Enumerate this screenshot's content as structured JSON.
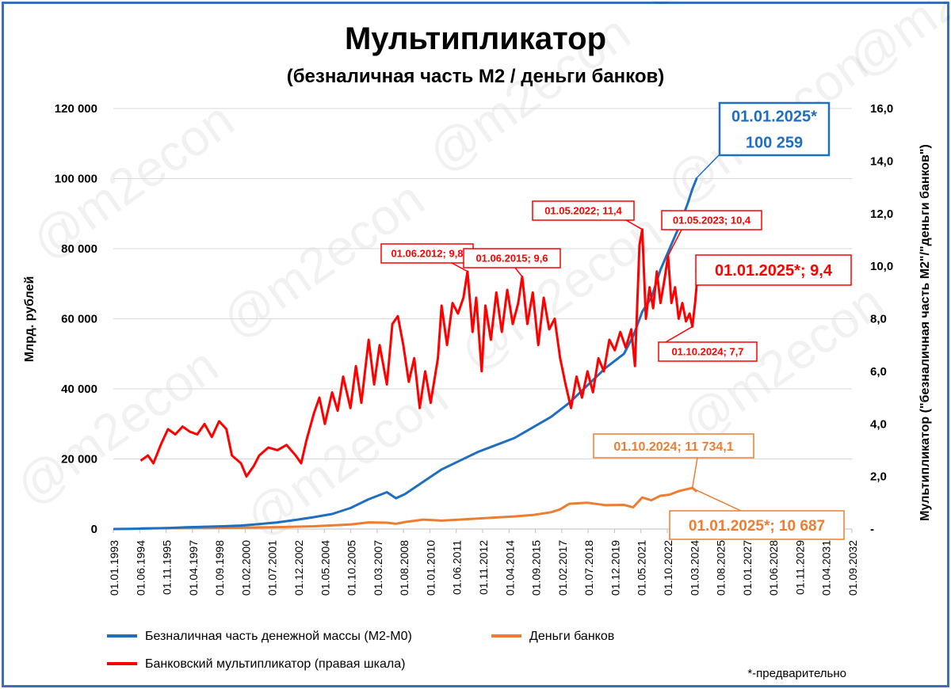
{
  "chart_data": {
    "type": "line",
    "title": "Мультипликатор",
    "subtitle": "(безналичная часть М2 / деньги банков)",
    "ylabel_left": "Млрд. рублей",
    "ylabel_right": "Мультипликатор (\"безналичная часть М2\"/\"деньги банков\")",
    "ylim_left": [
      0,
      120000
    ],
    "ylim_right": [
      0,
      16
    ],
    "yticks_left": [
      "0",
      "20 000",
      "40 000",
      "60 000",
      "80 000",
      "100 000",
      "120 000"
    ],
    "yticks_right": [
      "-",
      "2,0",
      "4,0",
      "6,0",
      "8,0",
      "10,0",
      "12,0",
      "14,0",
      "16,0"
    ],
    "x_ticks": [
      "01.01.1993",
      "01.06.1994",
      "01.11.1995",
      "01.04.1997",
      "01.09.1998",
      "01.02.2000",
      "01.07.2001",
      "01.12.2002",
      "01.05.2004",
      "01.10.2005",
      "01.03.2007",
      "01.08.2008",
      "01.01.2010",
      "01.06.2011",
      "01.11.2012",
      "01.04.2014",
      "01.09.2015",
      "01.02.2017",
      "01.07.2018",
      "01.12.2019",
      "01.05.2021",
      "01.10.2022",
      "01.03.2024",
      "01.08.2025",
      "01.01.2027",
      "01.06.2028",
      "01.11.2029",
      "01.04.2031",
      "01.09.2032"
    ],
    "x_range": [
      1993.0,
      2033.5
    ],
    "series": [
      {
        "name": "Безналичная часть денежной массы (М2-М0)",
        "color": "#1f6fc1",
        "axis": "left",
        "points": [
          [
            1993.0,
            0
          ],
          [
            1994.0,
            50
          ],
          [
            1995.0,
            150
          ],
          [
            1996.0,
            300
          ],
          [
            1997.0,
            500
          ],
          [
            1998.0,
            650
          ],
          [
            1999.0,
            800
          ],
          [
            2000.0,
            1000
          ],
          [
            2001.0,
            1400
          ],
          [
            2002.0,
            1900
          ],
          [
            2003.0,
            2600
          ],
          [
            2004.0,
            3400
          ],
          [
            2005.0,
            4300
          ],
          [
            2006.0,
            6000
          ],
          [
            2007.0,
            8500
          ],
          [
            2008.0,
            10500
          ],
          [
            2008.5,
            8800
          ],
          [
            2009.0,
            10000
          ],
          [
            2010.0,
            13500
          ],
          [
            2011.0,
            17000
          ],
          [
            2012.0,
            19500
          ],
          [
            2013.0,
            22000
          ],
          [
            2014.0,
            24000
          ],
          [
            2015.0,
            26000
          ],
          [
            2016.0,
            29000
          ],
          [
            2017.0,
            32000
          ],
          [
            2018.0,
            36000
          ],
          [
            2019.0,
            41000
          ],
          [
            2020.0,
            46000
          ],
          [
            2021.0,
            50000
          ],
          [
            2021.5,
            55000
          ],
          [
            2022.0,
            62000
          ],
          [
            2022.5,
            66000
          ],
          [
            2023.0,
            74000
          ],
          [
            2023.5,
            80000
          ],
          [
            2024.0,
            86000
          ],
          [
            2024.5,
            93000
          ],
          [
            2024.75,
            97000
          ],
          [
            2025.0,
            100259
          ]
        ]
      },
      {
        "name": "Деньги банков",
        "color": "#ed7d31",
        "axis": "left",
        "points": [
          [
            1994.5,
            200
          ],
          [
            1996.0,
            250
          ],
          [
            1998.0,
            300
          ],
          [
            2000.0,
            400
          ],
          [
            2002.0,
            550
          ],
          [
            2004.0,
            800
          ],
          [
            2006.0,
            1300
          ],
          [
            2007.0,
            1900
          ],
          [
            2008.0,
            1800
          ],
          [
            2008.5,
            1500
          ],
          [
            2009.0,
            2000
          ],
          [
            2010.0,
            2700
          ],
          [
            2011.0,
            2400
          ],
          [
            2012.0,
            2700
          ],
          [
            2013.0,
            3000
          ],
          [
            2014.0,
            3300
          ],
          [
            2015.0,
            3600
          ],
          [
            2016.0,
            4000
          ],
          [
            2017.0,
            4800
          ],
          [
            2017.5,
            5600
          ],
          [
            2018.0,
            7200
          ],
          [
            2019.0,
            7500
          ],
          [
            2020.0,
            6800
          ],
          [
            2021.0,
            6900
          ],
          [
            2021.5,
            6200
          ],
          [
            2022.0,
            9000
          ],
          [
            2022.5,
            8200
          ],
          [
            2023.0,
            9500
          ],
          [
            2023.5,
            9800
          ],
          [
            2024.0,
            10800
          ],
          [
            2024.75,
            11734.1
          ],
          [
            2025.0,
            10687
          ]
        ]
      },
      {
        "name": "Банковский мультипликатор (правая шкала)",
        "color": "#ff0000",
        "axis": "right",
        "points": [
          [
            1994.5,
            2.6
          ],
          [
            1994.9,
            2.8
          ],
          [
            1995.2,
            2.5
          ],
          [
            1995.6,
            3.2
          ],
          [
            1996.0,
            3.8
          ],
          [
            1996.4,
            3.6
          ],
          [
            1996.8,
            3.9
          ],
          [
            1997.2,
            3.7
          ],
          [
            1997.6,
            3.6
          ],
          [
            1998.0,
            4.0
          ],
          [
            1998.4,
            3.5
          ],
          [
            1998.8,
            4.1
          ],
          [
            1999.2,
            3.8
          ],
          [
            1999.5,
            2.8
          ],
          [
            2000.0,
            2.5
          ],
          [
            2000.3,
            2.0
          ],
          [
            2000.7,
            2.4
          ],
          [
            2001.0,
            2.8
          ],
          [
            2001.5,
            3.1
          ],
          [
            2002.0,
            3.0
          ],
          [
            2002.5,
            3.2
          ],
          [
            2003.0,
            2.8
          ],
          [
            2003.3,
            2.5
          ],
          [
            2003.6,
            3.4
          ],
          [
            2004.0,
            4.4
          ],
          [
            2004.3,
            5.0
          ],
          [
            2004.6,
            4.0
          ],
          [
            2005.0,
            5.2
          ],
          [
            2005.3,
            4.5
          ],
          [
            2005.6,
            5.8
          ],
          [
            2006.0,
            4.6
          ],
          [
            2006.3,
            6.2
          ],
          [
            2006.6,
            4.8
          ],
          [
            2007.0,
            7.2
          ],
          [
            2007.3,
            5.5
          ],
          [
            2007.6,
            7.0
          ],
          [
            2008.0,
            5.5
          ],
          [
            2008.3,
            7.8
          ],
          [
            2008.6,
            8.1
          ],
          [
            2008.9,
            7.0
          ],
          [
            2009.2,
            5.6
          ],
          [
            2009.5,
            6.5
          ],
          [
            2009.8,
            4.6
          ],
          [
            2010.1,
            6.0
          ],
          [
            2010.4,
            4.8
          ],
          [
            2010.8,
            6.5
          ],
          [
            2011.0,
            8.5
          ],
          [
            2011.3,
            7.0
          ],
          [
            2011.6,
            8.6
          ],
          [
            2011.9,
            8.2
          ],
          [
            2012.2,
            8.8
          ],
          [
            2012.42,
            9.8
          ],
          [
            2012.7,
            7.5
          ],
          [
            2012.9,
            8.8
          ],
          [
            2013.2,
            6.0
          ],
          [
            2013.4,
            8.5
          ],
          [
            2013.7,
            7.2
          ],
          [
            2014.0,
            9.0
          ],
          [
            2014.3,
            7.5
          ],
          [
            2014.6,
            9.1
          ],
          [
            2014.9,
            7.8
          ],
          [
            2015.2,
            8.6
          ],
          [
            2015.42,
            9.6
          ],
          [
            2015.7,
            7.8
          ],
          [
            2016.0,
            9.0
          ],
          [
            2016.3,
            7.0
          ],
          [
            2016.6,
            8.8
          ],
          [
            2016.9,
            7.6
          ],
          [
            2017.2,
            8.0
          ],
          [
            2017.5,
            6.5
          ],
          [
            2017.8,
            5.5
          ],
          [
            2018.1,
            4.6
          ],
          [
            2018.4,
            5.8
          ],
          [
            2018.7,
            5.0
          ],
          [
            2019.0,
            6.0
          ],
          [
            2019.3,
            5.2
          ],
          [
            2019.6,
            6.5
          ],
          [
            2019.9,
            6.0
          ],
          [
            2020.2,
            7.2
          ],
          [
            2020.5,
            6.8
          ],
          [
            2020.8,
            7.5
          ],
          [
            2021.1,
            6.9
          ],
          [
            2021.4,
            7.6
          ],
          [
            2021.6,
            6.2
          ],
          [
            2021.85,
            10.8
          ],
          [
            2022.0,
            11.4
          ],
          [
            2022.2,
            8.0
          ],
          [
            2022.4,
            9.2
          ],
          [
            2022.6,
            8.4
          ],
          [
            2022.8,
            9.8
          ],
          [
            2023.0,
            8.6
          ],
          [
            2023.2,
            9.4
          ],
          [
            2023.42,
            10.4
          ],
          [
            2023.6,
            8.6
          ],
          [
            2023.8,
            9.2
          ],
          [
            2024.0,
            8.0
          ],
          [
            2024.2,
            8.6
          ],
          [
            2024.4,
            7.9
          ],
          [
            2024.6,
            8.2
          ],
          [
            2024.75,
            7.7
          ],
          [
            2024.9,
            8.6
          ],
          [
            2025.0,
            9.4
          ]
        ]
      }
    ],
    "annotations": [
      {
        "text": "01.01.2025*\n100 259",
        "color": "#1f6fc1"
      },
      {
        "text": "01.06.2012;  9,8",
        "color": "#ff0000"
      },
      {
        "text": "01.06.2015;  9,6",
        "color": "#ff0000"
      },
      {
        "text": "01.05.2022;  11,4",
        "color": "#ff0000"
      },
      {
        "text": "01.05.2023;  10,4",
        "color": "#ff0000"
      },
      {
        "text": "01.01.2025*;   9,4",
        "color": "#ff0000"
      },
      {
        "text": "01.10.2024;  7,7",
        "color": "#ff0000"
      },
      {
        "text": "01.10.2024;  11 734,1",
        "color": "#ed7d31"
      },
      {
        "text": "01.01.2025*; 10 687",
        "color": "#ed7d31"
      }
    ],
    "legend_position": "bottom",
    "grid": true,
    "footnote": "*-предварительно",
    "watermark": "@m2econ"
  }
}
